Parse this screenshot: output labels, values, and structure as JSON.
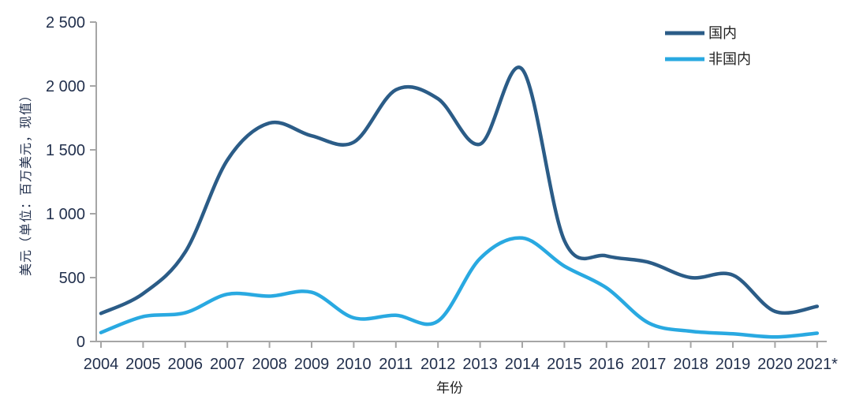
{
  "chart_data": {
    "type": "line",
    "xlabel": "年份",
    "ylabel": "美元（单位：百万美元，现值）",
    "categories": [
      "2004",
      "2005",
      "2006",
      "2007",
      "2008",
      "2009",
      "2010",
      "2011",
      "2012",
      "2013",
      "2014",
      "2015",
      "2016",
      "2017",
      "2018",
      "2019",
      "2020",
      "2021*"
    ],
    "series": [
      {
        "name": "国内",
        "color": "#2b5c87",
        "values": [
          220,
          375,
          700,
          1420,
          1710,
          1610,
          1560,
          1970,
          1900,
          1545,
          2130,
          790,
          670,
          620,
          500,
          520,
          235,
          275
        ]
      },
      {
        "name": "非国内",
        "color": "#29a9e1",
        "values": [
          70,
          195,
          225,
          370,
          355,
          385,
          185,
          205,
          160,
          650,
          810,
          590,
          420,
          145,
          80,
          60,
          35,
          65
        ]
      }
    ],
    "ylim": [
      0,
      2500
    ],
    "yticks": [
      0,
      500,
      1000,
      1500,
      2000,
      2500
    ],
    "ytick_labels": [
      "0",
      "500",
      "1 000",
      "1 500",
      "2 000",
      "2 500"
    ],
    "grid": false,
    "legend_position": "top-right"
  },
  "colors": {
    "axis": "#a6a6a6",
    "tick_text": "#22304d",
    "legend_text": "#1f1f1f"
  }
}
